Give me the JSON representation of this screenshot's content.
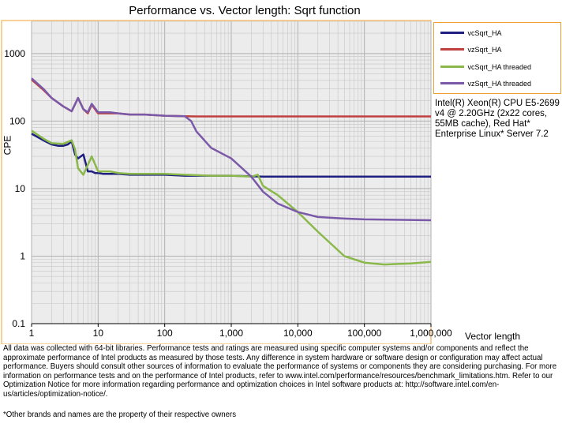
{
  "chart_data": {
    "type": "line",
    "title": "Performance vs. Vector length: Sqrt function",
    "xlabel": "Vector length",
    "ylabel": "CPE",
    "x_scale": "log",
    "y_scale": "log",
    "xlim": [
      1,
      1000000
    ],
    "ylim": [
      0.1,
      3000
    ],
    "x_ticks": [
      {
        "value": 1,
        "label": "1"
      },
      {
        "value": 10,
        "label": "10"
      },
      {
        "value": 100,
        "label": "100"
      },
      {
        "value": 1000,
        "label": "1,000"
      },
      {
        "value": 10000,
        "label": "10,000"
      },
      {
        "value": 100000,
        "label": "100,000"
      },
      {
        "value": 1000000,
        "label": "1,000,000"
      }
    ],
    "y_ticks": [
      {
        "value": 0.1,
        "label": "0.1"
      },
      {
        "value": 1,
        "label": "1"
      },
      {
        "value": 10,
        "label": "10"
      },
      {
        "value": 100,
        "label": "100"
      },
      {
        "value": 1000,
        "label": "1000"
      }
    ],
    "grid": true,
    "legend_position": "top-right outside",
    "series": [
      {
        "name": "vcSqrt_HA",
        "color": "#1f1f80",
        "x": [
          1,
          1.5,
          2,
          2.5,
          3,
          3.5,
          4,
          4.5,
          5,
          6,
          7,
          8,
          9,
          10,
          12,
          15,
          20,
          30,
          50,
          100,
          200,
          1000,
          3000,
          10000,
          100000,
          1000000
        ],
        "y": [
          65,
          52,
          45,
          43,
          43,
          45,
          50,
          32,
          28,
          32,
          18,
          18,
          17,
          17,
          16.5,
          16.5,
          16.5,
          16,
          16,
          16,
          15.5,
          15.5,
          15,
          15,
          15,
          15
        ]
      },
      {
        "name": "vzSqrt_HA",
        "color": "#c04040",
        "x": [
          1,
          1.5,
          2,
          3,
          4,
          5,
          6,
          7,
          8,
          10,
          15,
          20,
          30,
          50,
          100,
          200,
          300,
          1000,
          10000,
          100000,
          1000000
        ],
        "y": [
          410,
          290,
          220,
          165,
          140,
          220,
          150,
          130,
          175,
          130,
          130,
          130,
          125,
          125,
          120,
          118,
          117,
          117,
          117,
          117,
          117
        ]
      },
      {
        "name": "vcSqrt_HA threaded",
        "color": "#8ab84a",
        "x": [
          1,
          1.5,
          2,
          3,
          4,
          4.5,
          5,
          6,
          8,
          10,
          15,
          20,
          30,
          50,
          100,
          200,
          500,
          1000,
          2000,
          2500,
          3000,
          5000,
          10000,
          20000,
          50000,
          100000,
          200000,
          500000,
          1000000
        ],
        "y": [
          72,
          55,
          47,
          46,
          52,
          38,
          20,
          16,
          30,
          18,
          18,
          17,
          16.5,
          16.5,
          16.5,
          16,
          15.5,
          15.5,
          15,
          16,
          11,
          8,
          4.5,
          2.3,
          1,
          0.8,
          0.75,
          0.78,
          0.82
        ]
      },
      {
        "name": "vzSqrt_HA threaded",
        "color": "#7a5aa8",
        "x": [
          1,
          1.5,
          2,
          3,
          4,
          5,
          6,
          7,
          8,
          10,
          15,
          20,
          30,
          50,
          100,
          200,
          250,
          300,
          500,
          1000,
          2000,
          3000,
          5000,
          10000,
          20000,
          50000,
          100000,
          1000000
        ],
        "y": [
          430,
          300,
          220,
          165,
          140,
          220,
          150,
          135,
          180,
          135,
          135,
          130,
          125,
          125,
          120,
          118,
          100,
          70,
          40,
          28,
          15,
          9,
          6,
          4.5,
          3.8,
          3.6,
          3.5,
          3.4
        ]
      }
    ]
  },
  "side_note": "Intel(R) Xeon(R) CPU E5-2699 v4 @ 2.20GHz (2x22 cores, 55MB cache), Red Hat* Enterprise Linux* Server 7.2",
  "disclaimer": "All data was collected with 64-bit libraries. Performance tests and ratings are measured using specific computer systems and/or components and reflect the approximate performance of Intel products as measured by those tests. Any difference in system hardware or software design or configuration may affect actual performance. Buyers should consult other sources of information to evaluate the performance of systems or components they are considering purchasing. For more information on performance tests and on the performance of Intel products, refer to www.intel.com/performance/resources/benchmark_limitations.htm. Refer to our Optimization Notice for more information regarding performance and optimization choices in Intel software products at: http://software.intel.com/en-us/articles/optimization-notice/.",
  "footnote": "*Other brands and names are the property of their respective owners",
  "colors": {
    "plot_background": "#ececec",
    "frame": "#f0a030",
    "grid": "#c6c6c6"
  }
}
